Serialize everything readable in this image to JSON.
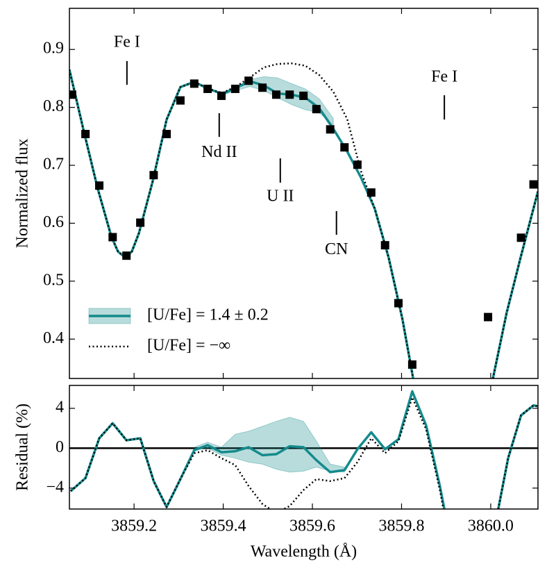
{
  "chart_data": [
    {
      "type": "line",
      "ylabel": "Normalized flux",
      "xlim": [
        3859.055,
        3860.106
      ],
      "ylim": [
        0.332,
        0.971
      ],
      "xticks": [
        3859.2,
        3859.4,
        3859.6,
        3859.8,
        3860.0
      ],
      "yticks": [
        0.4,
        0.5,
        0.6,
        0.7,
        0.8,
        0.9
      ],
      "legend": "lower left",
      "series": [
        {
          "name": "[U/Fe] = 1.4 ± 0.2",
          "color": "#148a8c",
          "style": "solid",
          "x": [
            3859.055,
            3859.086,
            3859.118,
            3859.149,
            3859.164,
            3859.18,
            3859.195,
            3859.211,
            3859.242,
            3859.273,
            3859.304,
            3859.335,
            3859.367,
            3859.398,
            3859.429,
            3859.46,
            3859.491,
            3859.522,
            3859.553,
            3859.584,
            3859.615,
            3859.647,
            3859.678,
            3859.709,
            3859.74,
            3859.771,
            3859.802,
            3859.826,
            null,
            3860.005,
            3860.036,
            3860.067,
            3860.106
          ],
          "values": [
            0.865,
            0.763,
            0.661,
            0.577,
            0.551,
            0.541,
            0.551,
            0.583,
            0.673,
            0.779,
            0.835,
            0.844,
            0.832,
            0.823,
            0.834,
            0.845,
            0.838,
            0.824,
            0.822,
            0.817,
            0.799,
            0.763,
            0.724,
            0.679,
            0.625,
            0.541,
            0.434,
            0.332,
            null,
            0.332,
            0.446,
            0.541,
            0.655
          ],
          "band": {
            "x": [
              3859.398,
              3859.429,
              3859.46,
              3859.491,
              3859.522,
              3859.553,
              3859.584,
              3859.615,
              3859.647
            ],
            "upper": [
              0.826,
              0.836,
              0.848,
              0.853,
              0.851,
              0.841,
              0.832,
              0.815,
              0.781
            ],
            "lower": [
              0.821,
              0.829,
              0.836,
              0.829,
              0.817,
              0.805,
              0.796,
              0.791,
              0.769
            ]
          }
        },
        {
          "name": "[U/Fe] = −∞",
          "color": "#000000",
          "style": "dotted",
          "x": [
            3859.055,
            3859.086,
            3859.118,
            3859.149,
            3859.164,
            3859.18,
            3859.195,
            3859.211,
            3859.242,
            3859.273,
            3859.304,
            3859.335,
            3859.367,
            3859.398,
            3859.429,
            3859.46,
            3859.491,
            3859.522,
            3859.553,
            3859.584,
            3859.615,
            3859.647,
            3859.678,
            3859.709,
            3859.74,
            3859.771,
            3859.802,
            3859.826,
            null,
            3860.005,
            3860.036,
            3860.067,
            3860.106
          ],
          "values": [
            0.865,
            0.763,
            0.661,
            0.577,
            0.551,
            0.541,
            0.551,
            0.583,
            0.673,
            0.779,
            0.835,
            0.844,
            0.832,
            0.825,
            0.836,
            0.852,
            0.869,
            0.875,
            0.876,
            0.872,
            0.856,
            0.827,
            0.78,
            0.69,
            0.625,
            0.541,
            0.434,
            0.332,
            null,
            0.332,
            0.446,
            0.541,
            0.655
          ]
        },
        {
          "color": "#000000",
          "style": "markers",
          "x": [
            3859.061,
            3859.091,
            3859.122,
            3859.152,
            3859.183,
            3859.214,
            3859.244,
            3859.273,
            3859.304,
            3859.335,
            3859.365,
            3859.396,
            3859.427,
            3859.457,
            3859.488,
            3859.519,
            3859.549,
            3859.58,
            3859.609,
            3859.64,
            3859.672,
            3859.701,
            3859.732,
            3859.763,
            3859.793,
            3859.824,
            3859.994,
            3860.068,
            3860.096
          ],
          "values": [
            0.822,
            0.754,
            0.665,
            0.576,
            0.544,
            0.601,
            0.683,
            0.754,
            0.812,
            0.841,
            0.832,
            0.82,
            0.832,
            0.846,
            0.834,
            0.822,
            0.822,
            0.82,
            0.797,
            0.762,
            0.731,
            0.701,
            0.653,
            0.562,
            0.462,
            0.356,
            0.438,
            0.575,
            0.667
          ]
        }
      ],
      "annotations": [
        {
          "text": "Fe I",
          "x": 3859.184,
          "y": 0.911,
          "tick": [
            0.88,
            0.839
          ]
        },
        {
          "text": "Nd II",
          "x": 3859.391,
          "y": 0.721,
          "tick": [
            0.79,
            0.749
          ]
        },
        {
          "text": "U II",
          "x": 3859.528,
          "y": 0.645,
          "tick": [
            0.712,
            0.67
          ]
        },
        {
          "text": "CN",
          "x": 3859.654,
          "y": 0.553,
          "tick": [
            0.621,
            0.58
          ]
        },
        {
          "text": "Fe I",
          "x": 3859.896,
          "y": 0.851,
          "tick": [
            0.821,
            0.779
          ]
        }
      ]
    },
    {
      "type": "line",
      "xlabel": "Wavelength (Å)",
      "ylabel": "Residual (%)",
      "xlim": [
        3859.055,
        3860.106
      ],
      "ylim": [
        -6.1,
        6.3
      ],
      "xticks": [
        3859.2,
        3859.4,
        3859.6,
        3859.8,
        {
          "value": 3860,
          "label": "3860.0"
        }
      ],
      "yticks": [
        {
          "value": -4,
          "label": "−4"
        },
        0,
        4
      ],
      "hline": 0,
      "series": [
        {
          "color": "#148a8c",
          "style": "solid",
          "x": [
            3859.058,
            3859.091,
            3859.122,
            3859.152,
            3859.183,
            3859.214,
            3859.244,
            3859.273,
            3859.304,
            3859.335,
            3859.365,
            3859.396,
            3859.427,
            3859.457,
            3859.488,
            3859.519,
            3859.549,
            3859.58,
            3859.609,
            3859.64,
            3859.672,
            3859.701,
            3859.732,
            3859.763,
            3859.793,
            3859.824,
            3859.855,
            3859.886,
            3859.896,
            null,
            3860.017,
            3860.039,
            3860.068,
            3860.096,
            3860.106
          ],
          "values": [
            -4.3,
            -3.0,
            1.0,
            2.5,
            0.8,
            1.0,
            -3.3,
            -5.9,
            -3.1,
            -0.2,
            0.3,
            -0.4,
            -0.3,
            0.1,
            -0.7,
            -0.6,
            0.2,
            0.1,
            -1.2,
            -2.4,
            -2.2,
            -0.1,
            1.6,
            -0.1,
            0.9,
            5.7,
            2.3,
            -3.8,
            -6.1,
            null,
            -6.1,
            -1.0,
            3.3,
            4.3,
            4.2
          ],
          "band": {
            "x": [
              3859.335,
              3859.365,
              3859.396,
              3859.427,
              3859.457,
              3859.488,
              3859.519,
              3859.549,
              3859.58,
              3859.609,
              3859.64,
              3859.672
            ],
            "upper": [
              0.1,
              0.6,
              0.1,
              1.4,
              1.7,
              2.2,
              2.7,
              3.1,
              2.7,
              0.7,
              -1.6,
              -1.9
            ],
            "lower": [
              -0.2,
              0,
              -0.7,
              -1.0,
              -1.4,
              -1.6,
              -2.1,
              -2.4,
              -2.3,
              -1.9,
              -2.3,
              -2.4
            ]
          }
        },
        {
          "color": "#000000",
          "style": "dotted",
          "x": [
            3859.058,
            3859.091,
            3859.122,
            3859.152,
            3859.183,
            3859.214,
            3859.244,
            3859.273,
            3859.304,
            3859.335,
            3859.365,
            3859.396,
            3859.427,
            3859.457,
            3859.488,
            3859.519,
            3859.549,
            3859.58,
            3859.609,
            3859.64,
            3859.672,
            3859.701,
            3859.732,
            3859.763,
            3859.793,
            3859.824,
            3859.855,
            3859.886,
            3859.896,
            null,
            3860.017,
            3860.039,
            3860.068,
            3860.096,
            3860.106
          ],
          "values": [
            -4.3,
            -3.0,
            1.0,
            2.5,
            0.8,
            1.0,
            -3.3,
            -5.9,
            -3.1,
            -0.5,
            -0.2,
            -1.0,
            -1.7,
            -3.8,
            -5.6,
            -6.5,
            -5.8,
            -4.2,
            -3.1,
            -3.3,
            -3.0,
            -1.4,
            1.0,
            -0.5,
            0.7,
            5.1,
            1.9,
            -4.2,
            -6.6,
            null,
            -6.1,
            -1.0,
            3.3,
            4.3,
            4.2
          ]
        }
      ]
    }
  ]
}
